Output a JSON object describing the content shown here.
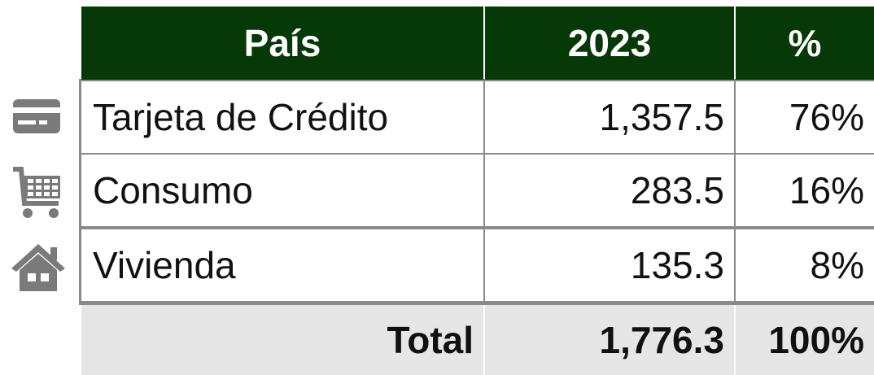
{
  "table": {
    "header": [
      "País",
      "2023",
      "%"
    ],
    "rows": [
      [
        "Tarjeta de Crédito",
        "1,357.5",
        "76%"
      ],
      [
        "Consumo",
        "283.5",
        "16%"
      ],
      [
        "Vivienda",
        "135.3",
        "8%"
      ]
    ],
    "total": [
      "Total",
      "1,776.3",
      "100%"
    ]
  }
}
